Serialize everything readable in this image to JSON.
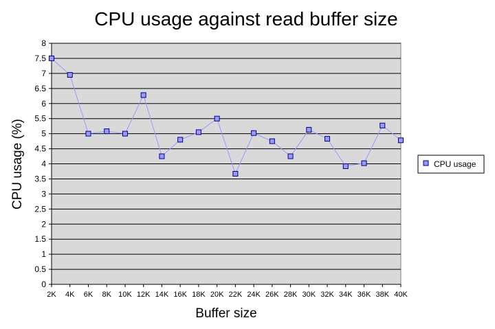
{
  "chart_data": {
    "type": "line",
    "title": "CPU usage against read buffer size",
    "xlabel": "Buffer size",
    "ylabel": "CPU usage (%)",
    "categories": [
      "2K",
      "4K",
      "6K",
      "8K",
      "10K",
      "12K",
      "14K",
      "16K",
      "18K",
      "20K",
      "22K",
      "24K",
      "26K",
      "28K",
      "30K",
      "32K",
      "34K",
      "36K",
      "38K",
      "40K"
    ],
    "series": [
      {
        "name": "CPU usage",
        "values": [
          7.5,
          6.95,
          5.0,
          5.08,
          5.0,
          6.28,
          4.25,
          4.8,
          5.05,
          5.5,
          3.67,
          5.02,
          4.75,
          4.25,
          5.13,
          4.83,
          3.92,
          4.02,
          5.27,
          4.78
        ]
      }
    ],
    "ylim": [
      0,
      8
    ],
    "ystep": 0.5,
    "grid": true,
    "legend": "right",
    "colors": {
      "plot_background": "#d9d9d9",
      "gridline": "#000000",
      "line": "#9999ff",
      "marker_fill": "#9999ff",
      "marker_stroke": "#000080"
    }
  }
}
